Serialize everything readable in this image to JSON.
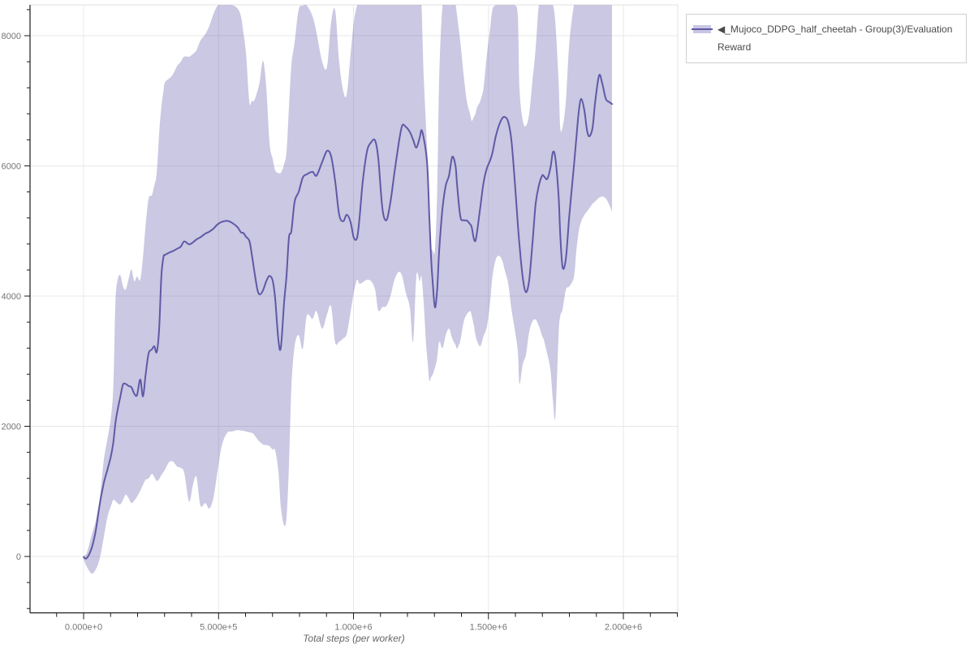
{
  "page": {
    "background": "#ffffff"
  },
  "legend": {
    "entries": [
      {
        "label": "◀_Mujoco_DDPG_half_cheetah - Group(3)/Evaluation Reward",
        "line_color": "#5f59a6",
        "band_color": "#c9c6e4"
      }
    ]
  },
  "chart_data": {
    "type": "line",
    "title": "",
    "xlabel": "Total steps (per worker)",
    "ylabel": "",
    "grid": true,
    "legend_position": "top-right",
    "xlim": [
      -198000,
      2204000
    ],
    "ylim": [
      -866,
      8474
    ],
    "x_ticks": {
      "major": [
        0,
        500000,
        1000000,
        1500000,
        2000000
      ],
      "major_labels": [
        "0.000e+0",
        "5.000e+5",
        "1.000e+6",
        "1.500e+6",
        "2.000e+6"
      ],
      "minor_step": 100000
    },
    "y_ticks": {
      "major": [
        0,
        2000,
        4000,
        6000,
        8000
      ],
      "major_labels": [
        "0",
        "2000",
        "4000",
        "6000",
        "8000"
      ],
      "minor_step": 400
    },
    "colors": {
      "line": "#5f59a6",
      "band_fill": "rgba(95,89,166,0.33)",
      "grid": "#e8e8e8",
      "axis": "#1a1a1a",
      "tick_label": "#757575",
      "axis_title": "#666666"
    },
    "series": [
      {
        "name": "◀_Mujoco_DDPG_half_cheetah - Group(3)/Evaluation Reward",
        "x_steps_thousands": [
          0,
          12,
          30,
          45,
          60,
          75,
          88,
          100,
          110,
          118,
          126,
          136,
          146,
          156,
          166,
          177,
          188,
          198,
          210,
          220,
          230,
          241,
          253,
          262,
          271,
          280,
          288,
          296,
          301,
          316,
          330,
          346,
          360,
          373,
          391,
          405,
          418,
          433,
          451,
          466,
          481,
          496,
          512,
          532,
          550,
          570,
          583,
          592,
          602,
          614,
          623,
          632,
          644,
          653,
          665,
          677,
          689,
          701,
          710,
          722,
          731,
          743,
          752,
          761,
          770,
          782,
          797,
          812,
          827,
          848,
          863,
          884,
          902,
          917,
          932,
          947,
          962,
          975,
          989,
          1001,
          1013,
          1022,
          1034,
          1050,
          1065,
          1080,
          1092,
          1107,
          1122,
          1137,
          1152,
          1167,
          1180,
          1194,
          1209,
          1221,
          1233,
          1245,
          1252,
          1260,
          1269,
          1275,
          1281,
          1287,
          1294,
          1302,
          1310,
          1318,
          1330,
          1342,
          1354,
          1366,
          1378,
          1384,
          1396,
          1408,
          1420,
          1432,
          1438,
          1446,
          1452,
          1458,
          1470,
          1482,
          1494,
          1506,
          1515,
          1527,
          1539,
          1551,
          1561,
          1573,
          1585,
          1597,
          1609,
          1615,
          1627,
          1639,
          1651,
          1663,
          1675,
          1687,
          1699,
          1706,
          1718,
          1730,
          1739,
          1748,
          1760,
          1766,
          1775,
          1787,
          1800,
          1817,
          1826,
          1835,
          1844,
          1856,
          1865,
          1874,
          1886,
          1895,
          1910,
          1922,
          1935,
          1948,
          1958
        ],
        "mean": [
          -10,
          -25,
          130,
          400,
          810,
          1130,
          1330,
          1520,
          1750,
          2050,
          2250,
          2450,
          2640,
          2650,
          2620,
          2600,
          2500,
          2480,
          2720,
          2460,
          2800,
          3120,
          3180,
          3230,
          3140,
          3500,
          4300,
          4600,
          4630,
          4665,
          4690,
          4725,
          4760,
          4840,
          4795,
          4825,
          4870,
          4905,
          4960,
          4990,
          5035,
          5100,
          5140,
          5155,
          5125,
          5060,
          4980,
          4970,
          4910,
          4850,
          4650,
          4400,
          4100,
          4025,
          4090,
          4230,
          4310,
          4230,
          3950,
          3315,
          3215,
          3900,
          4310,
          4900,
          5000,
          5450,
          5600,
          5820,
          5870,
          5910,
          5850,
          6060,
          6230,
          6150,
          5770,
          5250,
          5150,
          5250,
          5140,
          4900,
          4890,
          5180,
          5750,
          6220,
          6360,
          6390,
          6110,
          5350,
          5165,
          5450,
          5900,
          6330,
          6615,
          6600,
          6520,
          6400,
          6280,
          6430,
          6550,
          6430,
          6200,
          5900,
          5225,
          4640,
          4180,
          3825,
          4100,
          4720,
          5350,
          5700,
          5850,
          6140,
          6000,
          5700,
          5220,
          5165,
          5160,
          5105,
          5060,
          4880,
          4850,
          4990,
          5370,
          5745,
          5960,
          6080,
          6200,
          6450,
          6620,
          6730,
          6750,
          6680,
          6400,
          5800,
          5100,
          4790,
          4290,
          4060,
          4245,
          4800,
          5415,
          5700,
          5850,
          5840,
          5800,
          5975,
          6210,
          6120,
          5540,
          4955,
          4440,
          4580,
          5250,
          6015,
          6430,
          6840,
          7030,
          6840,
          6555,
          6455,
          6590,
          6965,
          7390,
          7260,
          7030,
          6980,
          6950
        ],
        "lower": [
          -40,
          -160,
          -262,
          -200,
          -30,
          300,
          600,
          760,
          870,
          850,
          820,
          800,
          870,
          950,
          900,
          820,
          860,
          920,
          1010,
          1100,
          1180,
          1200,
          1270,
          1220,
          1160,
          1190,
          1250,
          1300,
          1330,
          1445,
          1460,
          1385,
          1360,
          1283,
          845,
          1100,
          1221,
          783,
          820,
          735,
          900,
          1300,
          1700,
          1900,
          1920,
          1940,
          1935,
          1930,
          1920,
          1905,
          1900,
          1870,
          1800,
          1760,
          1720,
          1710,
          1695,
          1640,
          1630,
          1300,
          750,
          480,
          600,
          1400,
          2600,
          3230,
          3400,
          3190,
          3700,
          3650,
          3770,
          3500,
          3720,
          3840,
          3290,
          3300,
          3350,
          3420,
          3750,
          4050,
          4250,
          4190,
          4210,
          4250,
          4230,
          4100,
          3780,
          3830,
          3850,
          4000,
          4250,
          4370,
          4310,
          4050,
          3820,
          3300,
          4310,
          4230,
          4300,
          3900,
          3270,
          2980,
          2700,
          2750,
          2800,
          2900,
          3050,
          3300,
          3200,
          3400,
          3500,
          3350,
          3250,
          3195,
          3320,
          3600,
          3720,
          3770,
          3700,
          3550,
          3400,
          3310,
          3230,
          3390,
          3525,
          3900,
          4300,
          4560,
          4620,
          4550,
          4390,
          4200,
          3810,
          3500,
          3150,
          2650,
          2950,
          3100,
          3450,
          3610,
          3640,
          3540,
          3390,
          3320,
          3110,
          2860,
          2400,
          2150,
          3400,
          3690,
          3800,
          4100,
          4150,
          4300,
          4700,
          5000,
          5150,
          5250,
          5300,
          5350,
          5420,
          5450,
          5510,
          5530,
          5500,
          5400,
          5300
        ],
        "upper": [
          15,
          60,
          330,
          550,
          900,
          1483,
          1800,
          2100,
          2600,
          3900,
          4250,
          4320,
          4150,
          4100,
          4250,
          4410,
          4230,
          4300,
          4250,
          4600,
          5100,
          5500,
          5550,
          5700,
          5890,
          6500,
          6900,
          7150,
          7280,
          7340,
          7400,
          7530,
          7600,
          7680,
          7677,
          7720,
          7775,
          7925,
          8025,
          8150,
          8330,
          8460,
          8470,
          8470,
          8470,
          8420,
          8300,
          8050,
          7713,
          6980,
          7000,
          7000,
          7150,
          7300,
          7614,
          7200,
          6350,
          6100,
          5930,
          5890,
          5895,
          6020,
          6220,
          6900,
          7550,
          7900,
          8400,
          8460,
          8465,
          8300,
          8050,
          7600,
          7520,
          8200,
          8390,
          7600,
          7150,
          7100,
          7700,
          8200,
          8460,
          8470,
          8470,
          8470,
          8470,
          8470,
          8470,
          8470,
          8470,
          8470,
          8470,
          8470,
          8470,
          8470,
          8470,
          8470,
          8470,
          8470,
          8470,
          7400,
          6600,
          6100,
          5500,
          4800,
          4700,
          4720,
          5600,
          7400,
          8460,
          8470,
          8470,
          8470,
          8470,
          8300,
          7900,
          7400,
          7000,
          6800,
          6690,
          6750,
          6800,
          6900,
          7000,
          7200,
          7700,
          8100,
          8400,
          8470,
          8470,
          8470,
          8470,
          8470,
          8470,
          8470,
          8300,
          7200,
          6700,
          6615,
          6800,
          7300,
          7800,
          8470,
          8470,
          8470,
          8470,
          8470,
          8470,
          8200,
          7300,
          6590,
          6600,
          7000,
          7900,
          8470,
          8470,
          8470,
          8470,
          8470,
          8470,
          8470,
          8470,
          8470,
          8470,
          8470,
          8470,
          8470,
          8470
        ]
      }
    ]
  }
}
